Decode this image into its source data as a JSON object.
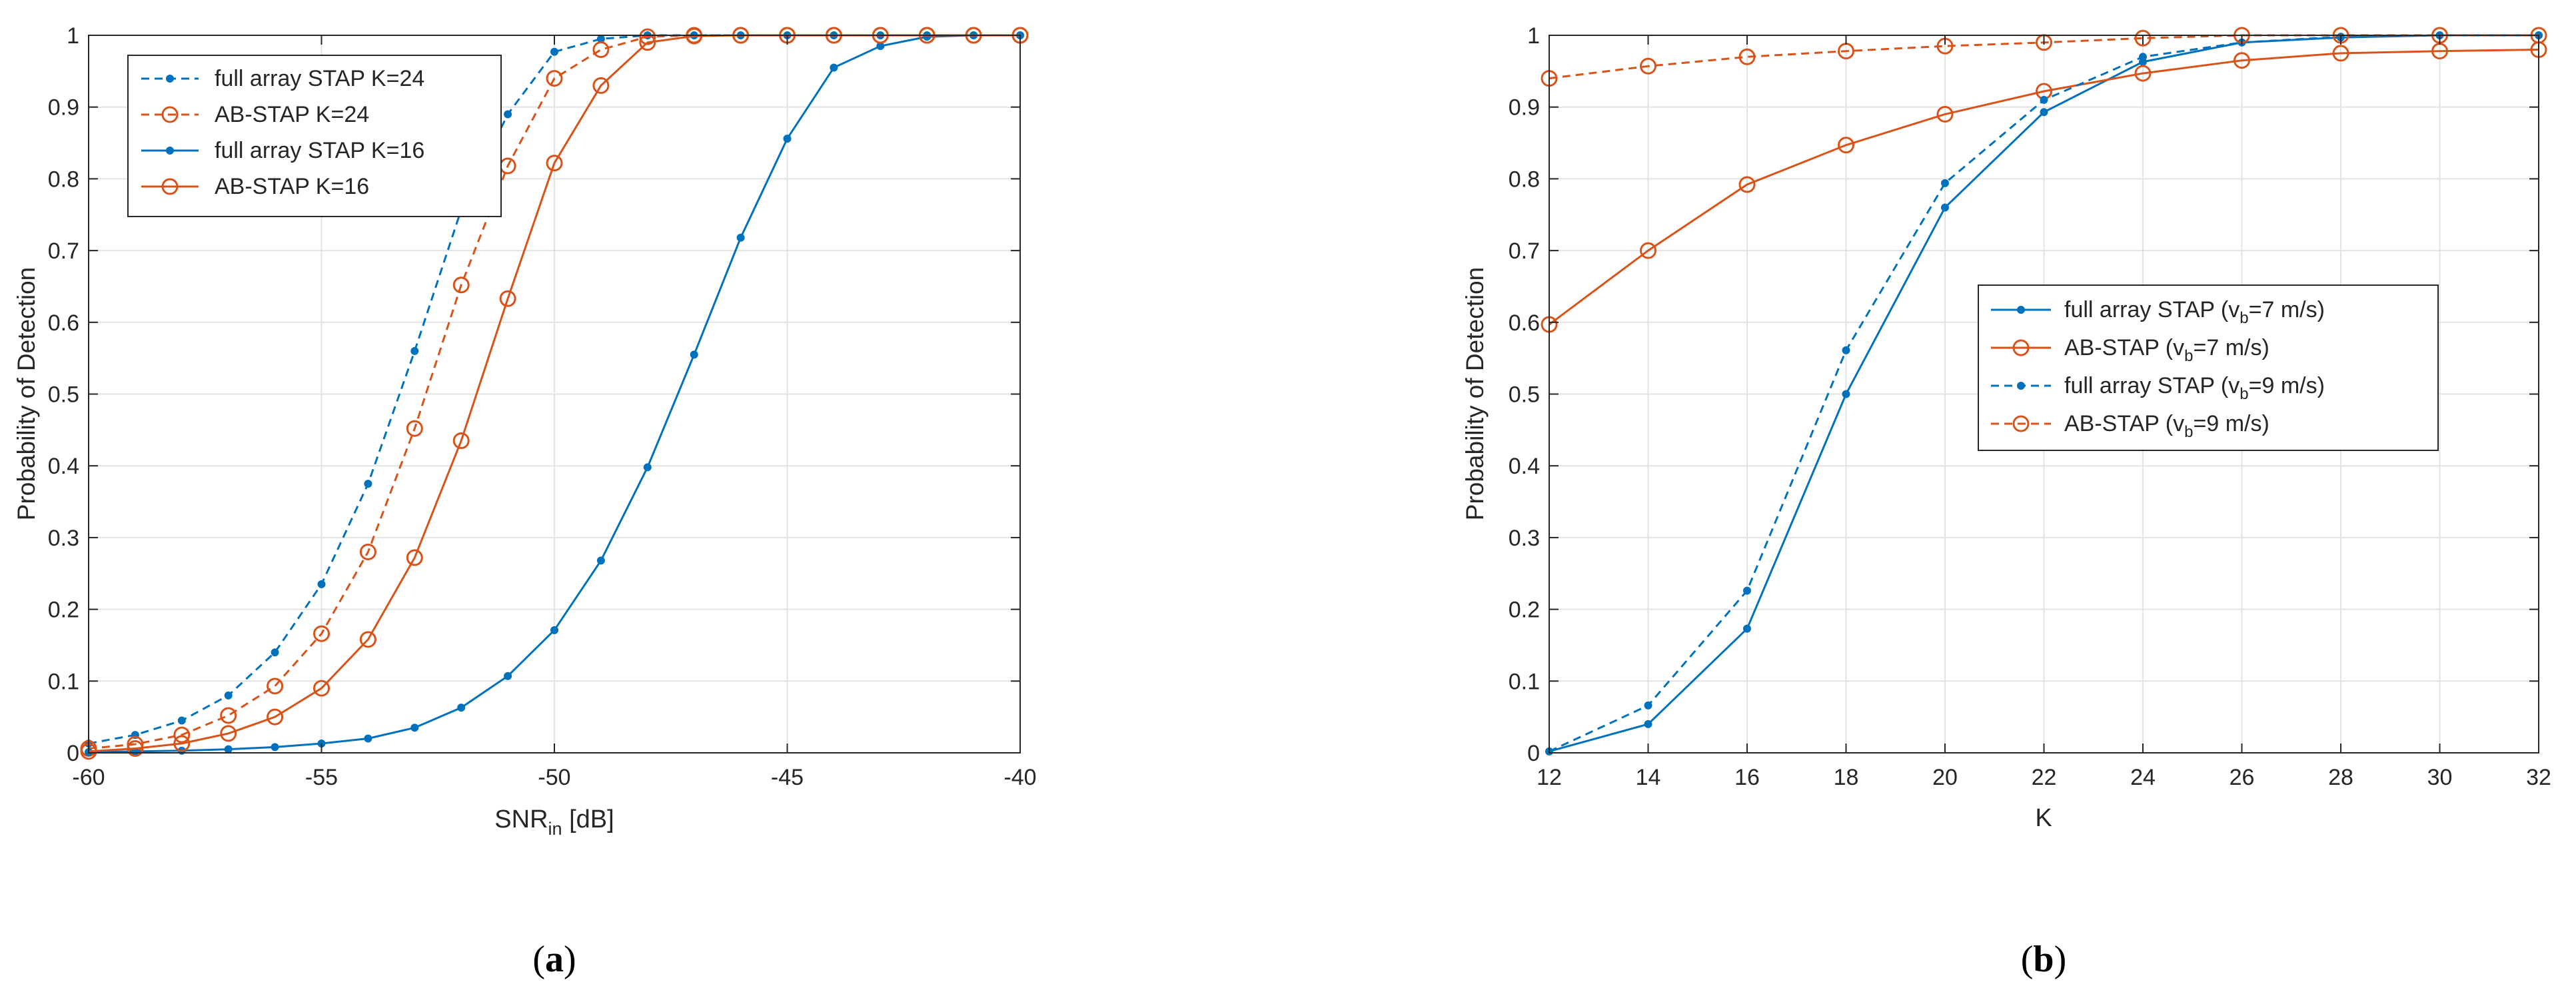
{
  "colors": {
    "blue": "#0072BD",
    "orange": "#D95319",
    "axis": "#262626",
    "grid": "#e3e3e3",
    "legend_border": "#262626"
  },
  "chart_data": [
    {
      "type": "line",
      "caption": "(a)",
      "caption_letter": "a",
      "xlabel_main": "SNR",
      "xlabel_sub": "in",
      "xlabel_tail": " [dB]",
      "ylabel": "Probability of Detection",
      "xlim": [
        -60,
        -40
      ],
      "ylim": [
        0,
        1
      ],
      "xticks": [
        -60,
        -55,
        -50,
        -45,
        -40
      ],
      "yticks": [
        0,
        0.1,
        0.2,
        0.3,
        0.4,
        0.5,
        0.6,
        0.7,
        0.8,
        0.9,
        1
      ],
      "grid": true,
      "legend_position": "top-left",
      "x": [
        -60,
        -59,
        -58,
        -57,
        -56,
        -55,
        -54,
        -53,
        -52,
        -51,
        -50,
        -49,
        -48,
        -47,
        -46,
        -45,
        -44,
        -43,
        -42,
        -41,
        -40
      ],
      "series": [
        {
          "name": "full array STAP K=24",
          "color": "blue",
          "style": "dashed",
          "marker": "dot",
          "values": [
            0.013,
            0.025,
            0.045,
            0.08,
            0.14,
            0.235,
            0.375,
            0.56,
            0.757,
            0.89,
            0.977,
            0.995,
            1,
            1,
            1,
            1,
            1,
            1,
            1,
            1,
            1
          ]
        },
        {
          "name": "AB-STAP K=24",
          "color": "orange",
          "style": "dashed",
          "marker": "circle",
          "values": [
            0.006,
            0.012,
            0.025,
            0.052,
            0.093,
            0.166,
            0.28,
            0.452,
            0.652,
            0.818,
            0.94,
            0.98,
            0.998,
            1,
            1,
            1,
            1,
            1,
            1,
            1,
            1
          ]
        },
        {
          "name": "full array STAP K=16",
          "color": "blue",
          "style": "solid",
          "marker": "dot",
          "values": [
            0.001,
            0.002,
            0.003,
            0.005,
            0.008,
            0.013,
            0.02,
            0.035,
            0.063,
            0.107,
            0.171,
            0.268,
            0.398,
            0.555,
            0.718,
            0.856,
            0.955,
            0.985,
            0.998,
            1,
            1
          ]
        },
        {
          "name": "AB-STAP K=16",
          "color": "orange",
          "style": "solid",
          "marker": "circle",
          "values": [
            0.002,
            0.006,
            0.013,
            0.027,
            0.05,
            0.09,
            0.158,
            0.272,
            0.435,
            0.633,
            0.822,
            0.93,
            0.99,
            0.999,
            1,
            1,
            1,
            1,
            1,
            1,
            1
          ]
        }
      ]
    },
    {
      "type": "line",
      "caption": "(b)",
      "caption_letter": "b",
      "xlabel": "K",
      "ylabel": "Probability of Detection",
      "xlim": [
        12,
        32
      ],
      "ylim": [
        0,
        1
      ],
      "xticks": [
        12,
        14,
        16,
        18,
        20,
        22,
        24,
        26,
        28,
        30,
        32
      ],
      "yticks": [
        0,
        0.1,
        0.2,
        0.3,
        0.4,
        0.5,
        0.6,
        0.7,
        0.8,
        0.9,
        1
      ],
      "grid": true,
      "legend_position": "right",
      "x": [
        12,
        14,
        16,
        18,
        20,
        22,
        24,
        26,
        28,
        30,
        32
      ],
      "series": [
        {
          "name": "full array STAP (v_b=7 m/s)",
          "name_pre": "full array STAP (v",
          "name_sub": "b",
          "name_post": "=7 m/s)",
          "color": "blue",
          "style": "solid",
          "marker": "dot",
          "values": [
            0.002,
            0.04,
            0.173,
            0.5,
            0.76,
            0.893,
            0.963,
            0.99,
            0.997,
            1,
            1
          ]
        },
        {
          "name": "AB-STAP (v_b=7 m/s)",
          "name_pre": "AB-STAP (v",
          "name_sub": "b",
          "name_post": "=7 m/s)",
          "color": "orange",
          "style": "solid",
          "marker": "circle",
          "values": [
            0.597,
            0.7,
            0.792,
            0.847,
            0.89,
            0.922,
            0.947,
            0.965,
            0.975,
            0.978,
            0.98
          ]
        },
        {
          "name": "full array STAP (v_b=9 m/s)",
          "name_pre": "full array STAP (v",
          "name_sub": "b",
          "name_post": "=9 m/s)",
          "color": "blue",
          "style": "dashed",
          "marker": "dot",
          "values": [
            0.002,
            0.066,
            0.226,
            0.561,
            0.794,
            0.91,
            0.97,
            0.99,
            0.998,
            1,
            1
          ]
        },
        {
          "name": "AB-STAP (v_b=9 m/s)",
          "name_pre": "AB-STAP (v",
          "name_sub": "b",
          "name_post": "=9 m/s)",
          "color": "orange",
          "style": "dashed",
          "marker": "circle",
          "values": [
            0.94,
            0.957,
            0.97,
            0.978,
            0.985,
            0.99,
            0.996,
            1,
            1,
            1,
            1
          ]
        }
      ]
    }
  ]
}
